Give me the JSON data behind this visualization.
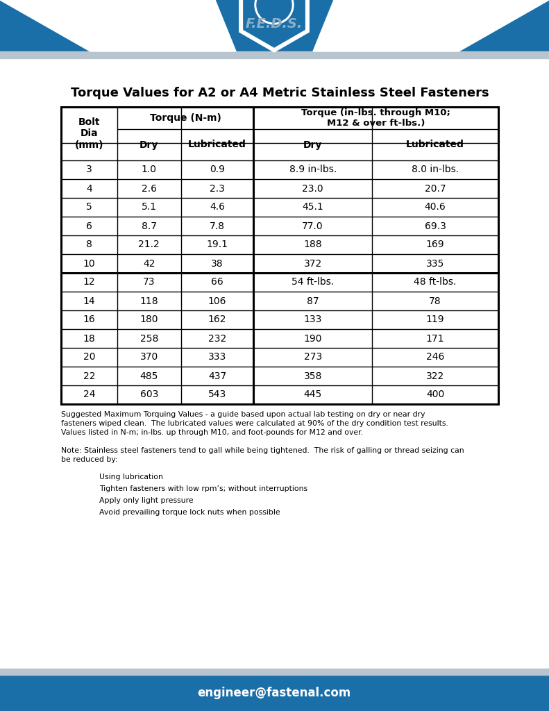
{
  "title": "Torque Values for A2 or A4 Metric Stainless Steel Fasteners",
  "rows_group1": [
    [
      "3",
      "1.0",
      "0.9",
      "8.9 in-lbs.",
      "8.0 in-lbs."
    ],
    [
      "4",
      "2.6",
      "2.3",
      "23.0",
      "20.7"
    ],
    [
      "5",
      "5.1",
      "4.6",
      "45.1",
      "40.6"
    ],
    [
      "6",
      "8.7",
      "7.8",
      "77.0",
      "69.3"
    ],
    [
      "8",
      "21.2",
      "19.1",
      "188",
      "169"
    ],
    [
      "10",
      "42",
      "38",
      "372",
      "335"
    ]
  ],
  "rows_group2": [
    [
      "12",
      "73",
      "66",
      "54 ft-lbs.",
      "48 ft-lbs."
    ],
    [
      "14",
      "118",
      "106",
      "87",
      "78"
    ],
    [
      "16",
      "180",
      "162",
      "133",
      "119"
    ],
    [
      "18",
      "258",
      "232",
      "190",
      "171"
    ],
    [
      "20",
      "370",
      "333",
      "273",
      "246"
    ],
    [
      "22",
      "485",
      "437",
      "358",
      "322"
    ],
    [
      "24",
      "603",
      "543",
      "445",
      "400"
    ]
  ],
  "note1": "Suggested Maximum Torquing Values - a guide based upon actual lab testing on dry or near dry\nfasteners wiped clean.  The lubricated values were calculated at 90% of the dry condition test results.\nValues listed in N-m; in-lbs. up through M10, and foot-pounds for M12 and over.",
  "note2_main": "Note: Stainless steel fasteners tend to gall while being tightened.  The risk of galling or thread seizing can\nbe reduced by:",
  "note2_bullets": [
    "Using lubrication",
    "Tighten fasteners with low rpm’s; without interruptions",
    "Apply only light pressure",
    "Avoid prevailing torque lock nuts when possible"
  ],
  "footer_email": "engineer@fastenal.com",
  "header_bg": "#1B6FA8",
  "header_stripe": "#B8C4CE",
  "footer_bg": "#1B6FA8",
  "footer_stripe": "#B8C4CE",
  "table_border_color": "#000000",
  "bg_color": "#ffffff"
}
